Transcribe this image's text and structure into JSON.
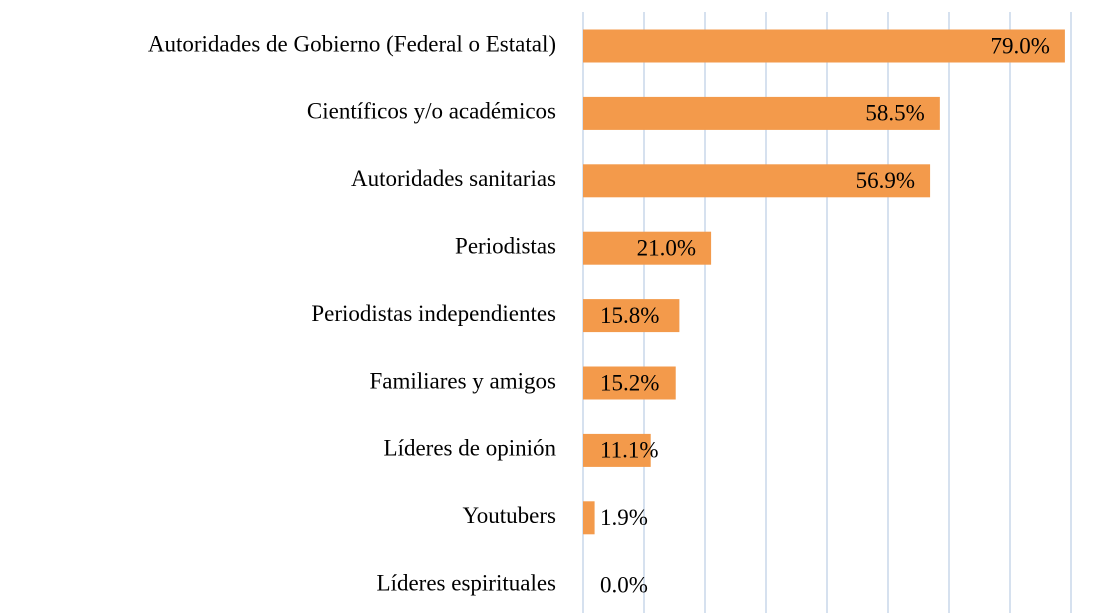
{
  "chart_data": {
    "type": "bar",
    "orientation": "horizontal",
    "categories": [
      "Autoridades de Gobierno (Federal o Estatal)",
      "Científicos y/o académicos",
      "Autoridades sanitarias",
      "Periodistas",
      "Periodistas independientes",
      "Familiares y amigos",
      "Líderes de opinión",
      "Youtubers",
      "Líderes espirituales"
    ],
    "values": [
      79.0,
      58.5,
      56.9,
      21.0,
      15.8,
      15.2,
      11.1,
      1.9,
      0.0
    ],
    "value_labels": [
      "79.0%",
      "58.5%",
      "56.9%",
      "21.0%",
      "15.8%",
      "15.2%",
      "11.1%",
      "1.9%",
      "0.0%"
    ],
    "color": "#f39a4b",
    "xlim": [
      0,
      80
    ],
    "xticks": [
      0,
      10,
      20,
      30,
      40,
      50,
      60,
      70,
      80
    ],
    "grid": true
  }
}
